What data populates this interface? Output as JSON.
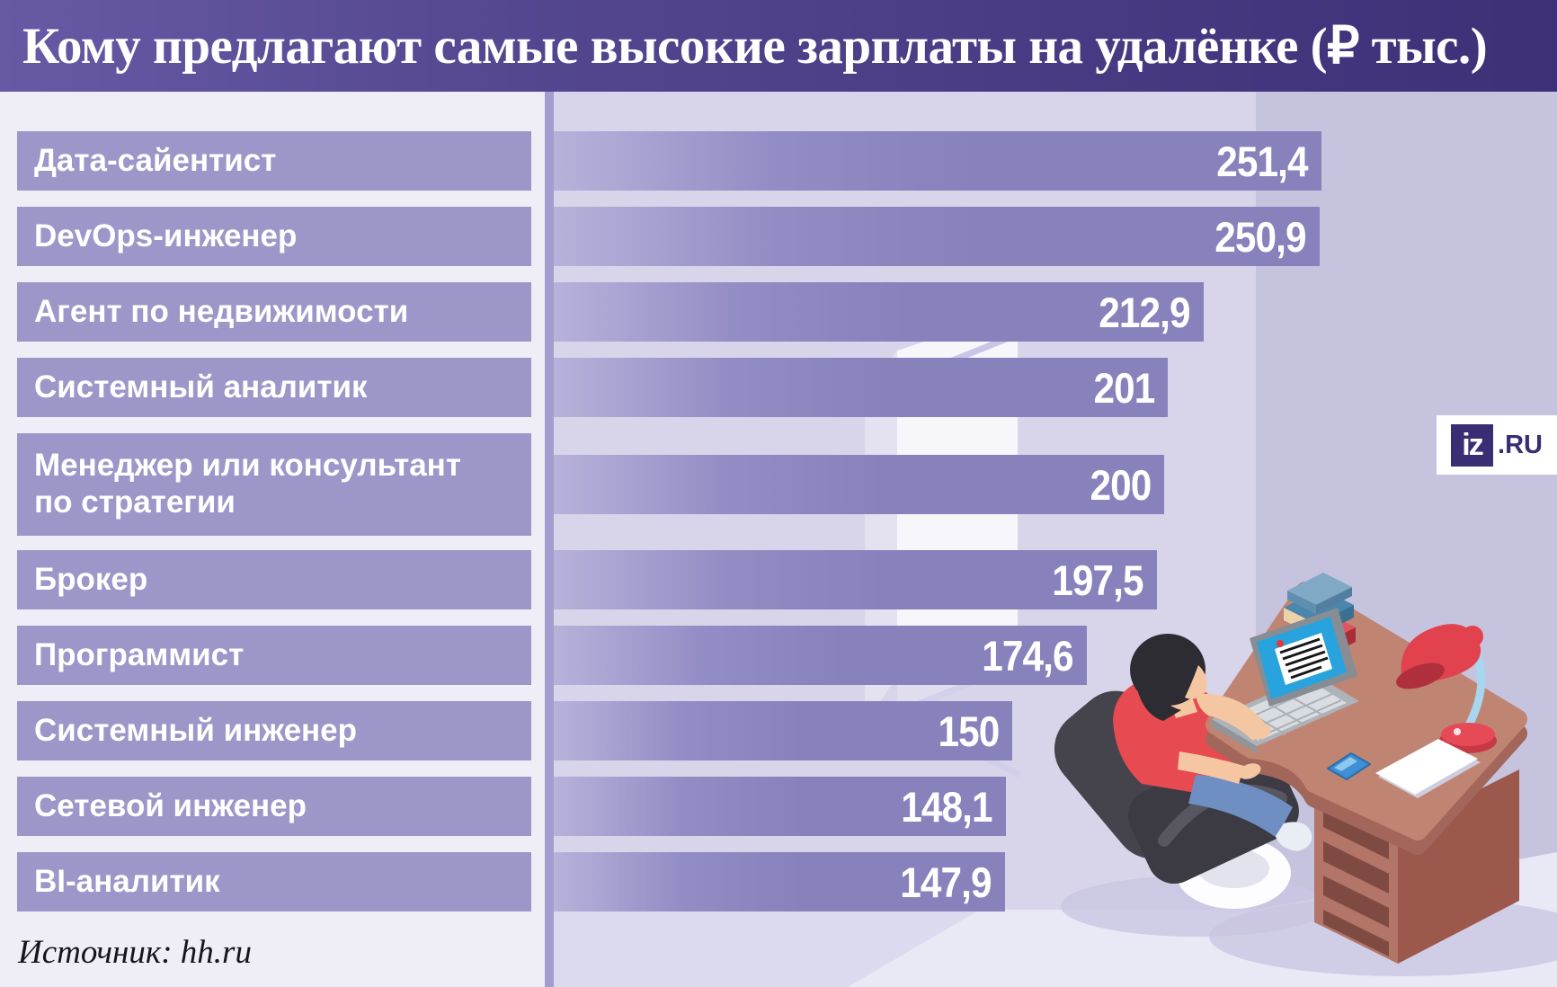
{
  "header": {
    "title": "Кому предлагают самые высокие зарплаты на удалёнке (₽ тыс.)"
  },
  "source": {
    "label": "Источник: hh.ru"
  },
  "logo": {
    "mark": "iz",
    "suffix": ".RU"
  },
  "colors": {
    "header_gradient_left": "#6759a4",
    "header_gradient_right": "#3e3077",
    "label_box": "#9d96c9",
    "bar_gradient_start": "#b7b2da",
    "bar_gradient_end": "#8781bc",
    "left_panel_bg": "#efeef7",
    "wall_left": "#d8d5ea",
    "wall_right": "#c6c3de",
    "floor": "#dcdaee",
    "floor_light": "#e9e8f5",
    "divider": "#a49ed0",
    "logo_purple": "#3a2d74",
    "label_text": "#ffffff",
    "value_text": "#ffffff"
  },
  "chart_data": {
    "type": "bar",
    "orientation": "horizontal",
    "title": "Кому предлагают самые высокие зарплаты на удалёнке (₽ тыс.)",
    "unit": "₽ тыс.",
    "source": "hh.ru",
    "categories": [
      "Дата-сайентист",
      "DevOps-инженер",
      "Агент по недвижимости",
      "Системный аналитик",
      "Менеджер или консультант\nпо стратегии",
      "Брокер",
      "Программист",
      "Системный инженер",
      "Сетевой инженер",
      "BI-аналитик"
    ],
    "values": [
      251.4,
      250.9,
      212.9,
      201,
      200,
      197.5,
      174.6,
      150,
      148.1,
      147.9
    ],
    "value_labels": [
      "251,4",
      "250,9",
      "212,9",
      "201",
      "200",
      "197,5",
      "174,6",
      "150",
      "148,1",
      "147,9"
    ],
    "xlim": [
      0,
      260
    ],
    "grid": false,
    "legend": false,
    "value_label_position": "inside-end"
  },
  "illustration": {
    "description": "Man in red shirt working on a laptop, sitting in a dark office chair at a brown desk with shelves; red desk lamp, stack of books, smartphone and paper sheet on the desk; open lit doorway in the background",
    "items": [
      "open-door",
      "office-chair",
      "man-with-laptop",
      "desk",
      "books-stack",
      "desk-lamp",
      "smartphone",
      "paper-sheet"
    ]
  }
}
